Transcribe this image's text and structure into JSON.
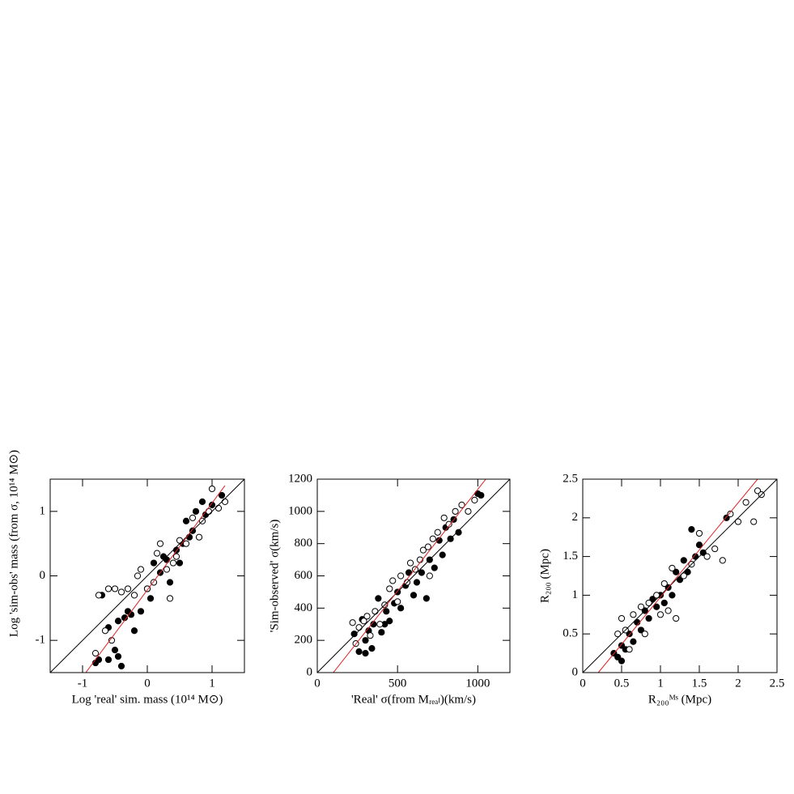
{
  "chart_data": [
    {
      "type": "scatter",
      "xlabel": "Log 'real' sim. mass (10¹⁴ M⊙)",
      "ylabel": "Log 'sim-obs' mass (from σ, 10¹⁴ M⊙)",
      "xlim": [
        -1.5,
        1.5
      ],
      "ylim": [
        -1.5,
        1.5
      ],
      "xticks": [
        -1,
        0,
        1
      ],
      "yticks": [
        -1,
        0,
        1
      ],
      "series": [
        {
          "mode": "filled",
          "color": "#000",
          "x": [
            -0.8,
            -0.75,
            -0.7,
            -0.6,
            -0.5,
            -0.45,
            -0.4,
            -0.45,
            -0.35,
            -0.3,
            -0.2,
            -0.1,
            0,
            0.05,
            0.1,
            0.2,
            0.3,
            0.35,
            0.45,
            0.5,
            0.55,
            0.6,
            0.7,
            0.75,
            0.85,
            0.9,
            1.0,
            1.15,
            -0.6,
            -0.25,
            0.25,
            0.65
          ],
          "values": [
            -1.35,
            -1.3,
            -0.3,
            -1.3,
            -1.15,
            -1.25,
            -1.4,
            -0.7,
            -0.65,
            -0.55,
            -0.85,
            -0.55,
            -0.2,
            -0.35,
            0.2,
            0.05,
            0.25,
            -0.1,
            0.4,
            0.2,
            0.5,
            0.85,
            0.7,
            1.0,
            1.15,
            0.95,
            1.1,
            1.25,
            -0.8,
            -0.6,
            0.3,
            0.6
          ]
        },
        {
          "mode": "open",
          "color": "#000",
          "x": [
            -0.75,
            -0.65,
            -0.6,
            -0.5,
            -0.4,
            -0.3,
            -0.2,
            -0.1,
            0,
            0.1,
            0.15,
            0.2,
            0.3,
            0.35,
            0.4,
            0.5,
            0.6,
            0.7,
            0.8,
            0.85,
            1.0,
            1.1,
            1.2,
            -0.8,
            -0.55,
            -0.15,
            0.45,
            0.95
          ],
          "values": [
            -0.3,
            -0.85,
            -0.2,
            -0.2,
            -0.25,
            -0.2,
            -0.3,
            0.1,
            -0.2,
            -0.1,
            0.35,
            0.5,
            0.1,
            -0.35,
            0.2,
            0.55,
            0.5,
            0.9,
            0.6,
            0.85,
            1.35,
            1.05,
            1.15,
            -1.2,
            -1.0,
            0.0,
            0.3,
            1.0
          ]
        },
        {
          "mode": "line",
          "color": "#000",
          "x": [
            -1.5,
            1.5
          ],
          "values": [
            -1.5,
            1.5
          ]
        },
        {
          "mode": "line",
          "color": "#e02020",
          "x": [
            -0.95,
            1.2
          ],
          "values": [
            -1.5,
            1.4
          ]
        }
      ]
    },
    {
      "type": "scatter",
      "xlabel": "'Real' σ(from Mᵣₑₐₗ)(km/s)",
      "ylabel": "'Sim-observed' σ(km/s)",
      "xlim": [
        0,
        1200
      ],
      "ylim": [
        0,
        1200
      ],
      "xticks": [
        0,
        500,
        1000
      ],
      "yticks": [
        0,
        200,
        400,
        600,
        800,
        1000,
        1200
      ],
      "series": [
        {
          "mode": "filled",
          "color": "#000",
          "x": [
            230,
            260,
            280,
            300,
            320,
            340,
            350,
            380,
            400,
            430,
            450,
            480,
            500,
            520,
            550,
            570,
            600,
            620,
            650,
            680,
            700,
            730,
            760,
            780,
            800,
            830,
            850,
            880,
            1000,
            1020,
            300,
            420
          ],
          "values": [
            240,
            130,
            330,
            200,
            260,
            150,
            300,
            460,
            250,
            380,
            320,
            430,
            500,
            400,
            540,
            620,
            480,
            560,
            620,
            460,
            700,
            650,
            820,
            730,
            900,
            830,
            950,
            870,
            1110,
            1100,
            120,
            300
          ]
        },
        {
          "mode": "open",
          "color": "#000",
          "x": [
            220,
            240,
            260,
            290,
            310,
            330,
            360,
            390,
            420,
            450,
            470,
            500,
            520,
            560,
            580,
            610,
            640,
            660,
            690,
            720,
            750,
            790,
            820,
            860,
            900,
            940,
            980,
            700
          ],
          "values": [
            310,
            180,
            280,
            320,
            350,
            230,
            380,
            300,
            420,
            520,
            570,
            440,
            600,
            560,
            680,
            640,
            700,
            760,
            780,
            830,
            870,
            960,
            920,
            1000,
            1040,
            1000,
            1070,
            600
          ]
        },
        {
          "mode": "line",
          "color": "#000",
          "x": [
            0,
            1200
          ],
          "values": [
            0,
            1200
          ]
        },
        {
          "mode": "line",
          "color": "#e02020",
          "x": [
            100,
            1050
          ],
          "values": [
            0,
            1200
          ]
        }
      ]
    },
    {
      "type": "scatter",
      "xlabel": "R₂₀₀ᴹˢ (Mpc)",
      "ylabel": "R₂₀₀ (Mpc)",
      "xlim": [
        0,
        2.5
      ],
      "ylim": [
        0,
        2.5
      ],
      "xticks": [
        0,
        0.5,
        1,
        1.5,
        2,
        2.5
      ],
      "yticks": [
        0,
        0.5,
        1,
        1.5,
        2,
        2.5
      ],
      "series": [
        {
          "mode": "filled",
          "color": "#000",
          "x": [
            0.45,
            0.5,
            0.55,
            0.6,
            0.65,
            0.7,
            0.75,
            0.8,
            0.85,
            0.9,
            0.95,
            1.0,
            1.05,
            1.1,
            1.15,
            1.2,
            1.25,
            1.3,
            1.35,
            1.4,
            1.45,
            1.5,
            1.55,
            1.85,
            0.4,
            0.5
          ],
          "values": [
            0.2,
            0.35,
            0.3,
            0.5,
            0.4,
            0.65,
            0.55,
            0.8,
            0.7,
            0.95,
            0.85,
            1.0,
            0.9,
            1.1,
            1.0,
            1.3,
            1.2,
            1.45,
            1.3,
            1.85,
            1.5,
            1.65,
            1.55,
            2.0,
            0.25,
            0.15
          ]
        },
        {
          "mode": "open",
          "color": "#000",
          "x": [
            0.45,
            0.5,
            0.6,
            0.65,
            0.75,
            0.8,
            0.85,
            0.95,
            1.0,
            1.05,
            1.1,
            1.15,
            1.2,
            1.3,
            1.4,
            1.5,
            1.6,
            1.7,
            1.8,
            1.9,
            2.0,
            2.1,
            2.2,
            2.25,
            2.3,
            0.55
          ],
          "values": [
            0.5,
            0.7,
            0.3,
            0.75,
            0.85,
            0.5,
            0.9,
            1.0,
            0.75,
            1.15,
            0.8,
            1.35,
            0.7,
            1.25,
            1.4,
            1.8,
            1.5,
            1.6,
            1.45,
            2.05,
            1.95,
            2.2,
            1.95,
            2.35,
            2.3,
            0.55
          ]
        },
        {
          "mode": "line",
          "color": "#000",
          "x": [
            0,
            2.5
          ],
          "values": [
            0,
            2.5
          ]
        },
        {
          "mode": "line",
          "color": "#e02020",
          "x": [
            0.2,
            2.25
          ],
          "values": [
            0,
            2.5
          ]
        }
      ]
    }
  ]
}
